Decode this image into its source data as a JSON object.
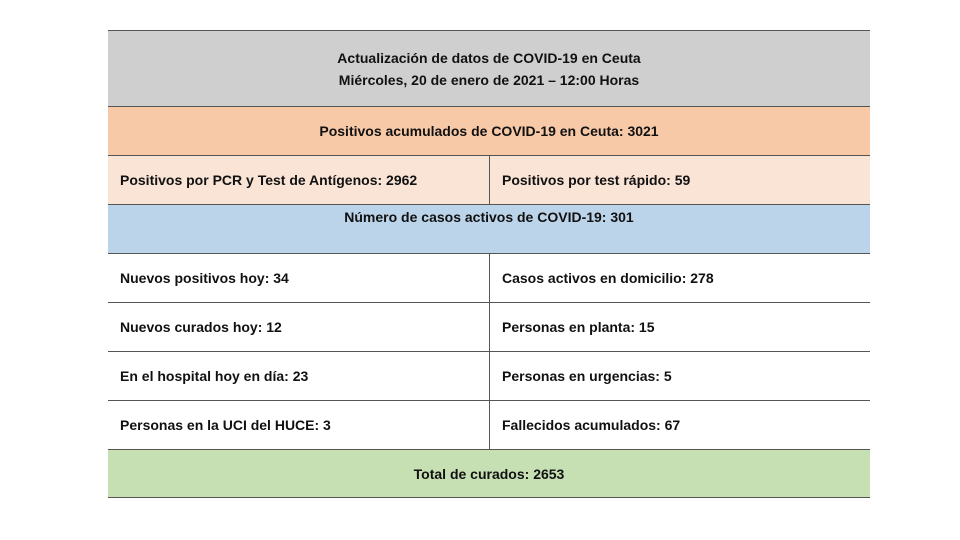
{
  "header": {
    "title": "Actualización de datos de COVID-19 en Ceuta",
    "date": "Miércoles, 20 de enero de 2021 – 12:00 Horas"
  },
  "positivos_acumulados": "Positivos acumulados de COVID-19 en Ceuta:  3021",
  "positivos_pcr": "Positivos por PCR y Test de Antígenos:  2962",
  "positivos_rapido": "Positivos por test rápido:  59",
  "casos_activos": "Número de casos activos de COVID-19:   301",
  "rows": [
    {
      "left": "Nuevos positivos hoy: 34",
      "right": "Casos activos en domicilio: 278"
    },
    {
      "left": "Nuevos curados hoy: 12",
      "right": "Personas en planta: 15"
    },
    {
      "left": "En el hospital hoy en día: 23",
      "right": "Personas en urgencias: 5"
    },
    {
      "left": "Personas en la UCI del HUCE: 3",
      "right": "Fallecidos acumulados: 67"
    }
  ],
  "total_curados": "Total de curados: 2653"
}
